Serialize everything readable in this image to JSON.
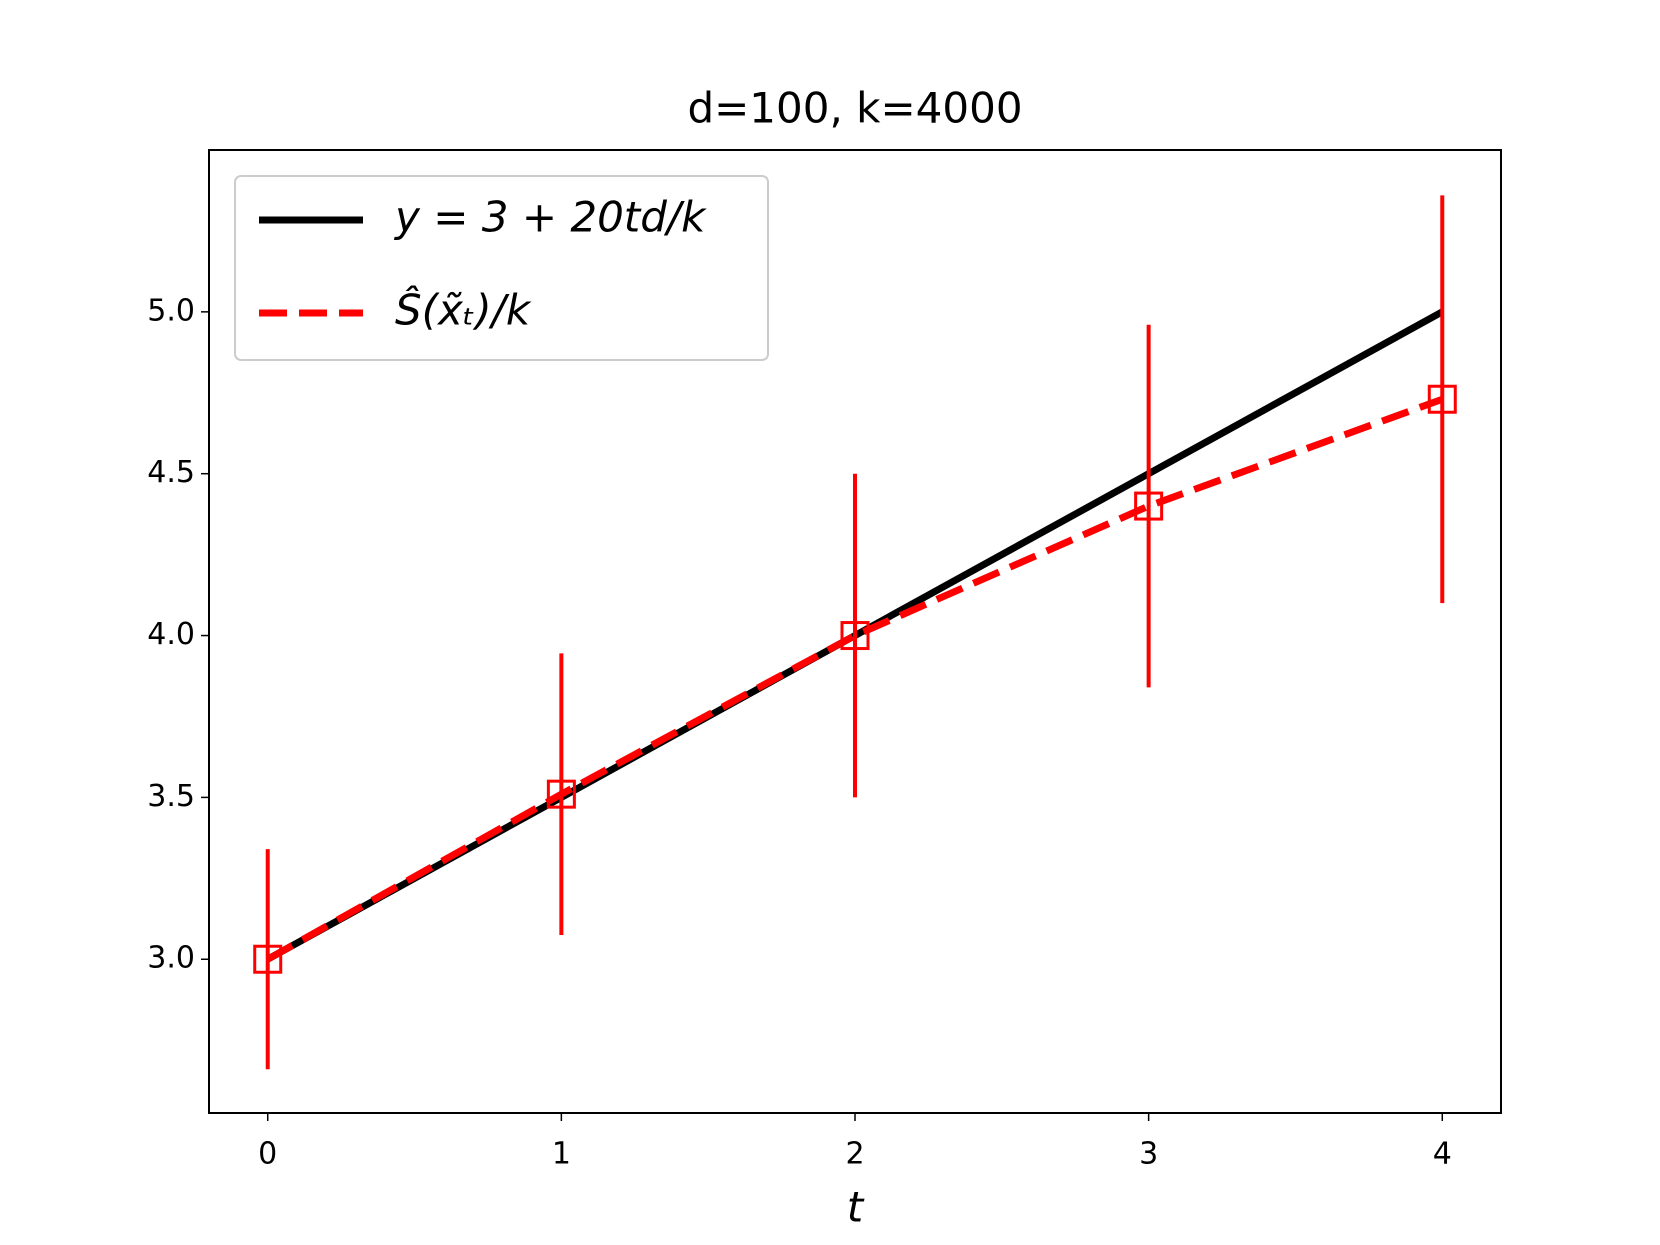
{
  "chart_data": {
    "type": "line",
    "title": "d=100, k=4000",
    "x_label": "t",
    "x": [
      0,
      1,
      2,
      3,
      4
    ],
    "series": [
      {
        "name": "y = 3 + 20td/k",
        "color": "#000000",
        "linestyle": "solid",
        "values": [
          3.0,
          3.5,
          4.0,
          4.5,
          5.0
        ]
      },
      {
        "name": "Ŝ(x̃ₜ)/k",
        "color": "#ff0000",
        "linestyle": "dashed",
        "marker": "square",
        "values": [
          3.0,
          3.51,
          4.0,
          4.4,
          4.73
        ],
        "errors": [
          0.34,
          0.435,
          0.5,
          0.56,
          0.63
        ]
      }
    ],
    "xlim": [
      -0.2,
      4.2
    ],
    "xticks": [
      0,
      1,
      2,
      3,
      4
    ],
    "ylim": [
      2.525,
      5.5
    ],
    "yticks": [
      {
        "value": 3.0,
        "label": "3.0"
      },
      {
        "value": 3.5,
        "label": "3.5"
      },
      {
        "value": 4.0,
        "label": "4.0"
      },
      {
        "value": 4.5,
        "label": "4.5"
      },
      {
        "value": 5.0,
        "label": "5.0"
      }
    ],
    "grid": false,
    "legend": "upper left"
  }
}
